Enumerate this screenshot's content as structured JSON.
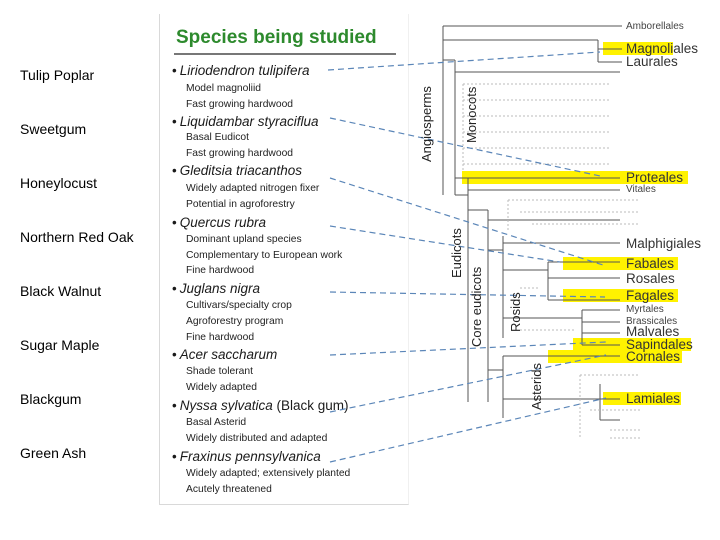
{
  "common_names": [
    "Tulip Poplar",
    "Sweetgum",
    "Honeylocust",
    "Northern Red Oak",
    "Black Walnut",
    "Sugar Maple",
    "Blackgum",
    "Green Ash"
  ],
  "panel": {
    "title": "Species being studied",
    "species": [
      {
        "name": "Liriodendron tulipifera",
        "extra": "",
        "notes": [
          "Model magnoliid",
          "Fast growing hardwood"
        ]
      },
      {
        "name": "Liquidambar styraciflua",
        "extra": "",
        "notes": [
          "Basal Eudicot",
          "Fast growing hardwood"
        ]
      },
      {
        "name": "Gleditsia triacanthos",
        "extra": "",
        "notes": [
          "Widely adapted nitrogen fixer",
          "Potential in agroforestry"
        ]
      },
      {
        "name": "Quercus rubra",
        "extra": "",
        "notes": [
          "Dominant upland species",
          "Complementary to European work",
          "Fine hardwood"
        ]
      },
      {
        "name": "Juglans nigra",
        "extra": "",
        "notes": [
          "Cultivars/specialty crop",
          "Agroforestry program",
          "Fine hardwood"
        ]
      },
      {
        "name": "Acer saccharum",
        "extra": "",
        "notes": [
          "Shade tolerant",
          "Widely adapted"
        ]
      },
      {
        "name": "Nyssa sylvatica",
        "extra": " (Black gum)",
        "notes": [
          "Basal Asterid",
          "Widely distributed and adapted"
        ]
      },
      {
        "name": "Fraxinus pennsylvanica",
        "extra": "",
        "notes": [
          "Widely adapted; extensively planted",
          "Acutely threatened"
        ]
      }
    ]
  },
  "tree": {
    "clades": [
      "Angiosperms",
      "Monocots",
      "Eudicots",
      "Core eudicots",
      "Rosids",
      "Asterids"
    ],
    "taxa": [
      {
        "label": "Amborellales",
        "highlighted": false
      },
      {
        "label": "Magnoliales",
        "highlighted": true
      },
      {
        "label": "Laurales",
        "highlighted": false
      },
      {
        "label": "Proteales",
        "highlighted": true
      },
      {
        "label": "Vitales",
        "highlighted": false
      },
      {
        "label": "Malphigiales",
        "highlighted": false
      },
      {
        "label": "Fabales",
        "highlighted": true
      },
      {
        "label": "Rosales",
        "highlighted": false
      },
      {
        "label": "Fagales",
        "highlighted": true
      },
      {
        "label": "Myrtales",
        "highlighted": false
      },
      {
        "label": "Brassicales",
        "highlighted": false
      },
      {
        "label": "Malvales",
        "highlighted": false
      },
      {
        "label": "Sapindales",
        "highlighted": true
      },
      {
        "label": "Cornales",
        "highlighted": true
      },
      {
        "label": "Lamiales",
        "highlighted": true
      }
    ],
    "highlight_color": "#fff200",
    "connector_color": "#5b86b8"
  }
}
